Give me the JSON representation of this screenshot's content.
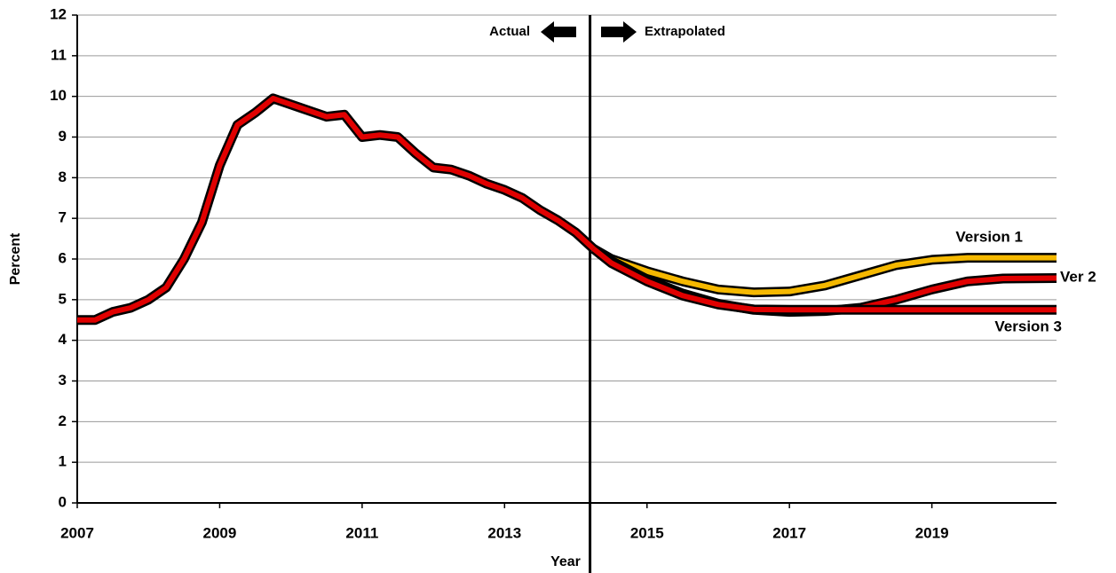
{
  "chart_data": {
    "type": "line",
    "x_label": "Year",
    "y_label": "Percent",
    "xlim": [
      2007,
      2020.75
    ],
    "xticks": [
      2007,
      2009,
      2011,
      2013,
      2015,
      2017,
      2019
    ],
    "ylim": [
      0,
      12
    ],
    "yticks": [
      0,
      1,
      2,
      3,
      4,
      5,
      6,
      7,
      8,
      9,
      10,
      11,
      12
    ],
    "grid": true,
    "divider": 2014.2,
    "divider_left_label": "Actual",
    "divider_right_label": "Extrapolated",
    "series": [
      {
        "color": "#e00000",
        "x": [
          2007,
          2007.25,
          2007.5,
          2007.75,
          2008,
          2008.25,
          2008.5,
          2008.75,
          2009,
          2009.25,
          2009.5,
          2009.75,
          2010,
          2010.25,
          2010.5,
          2010.75,
          2011,
          2011.25,
          2011.5,
          2011.75,
          2012,
          2012.25,
          2012.5,
          2012.75,
          2013,
          2013.25,
          2013.5,
          2013.75,
          2014,
          2014.25
        ],
        "values": [
          4.5,
          4.5,
          4.7,
          4.8,
          5.0,
          5.3,
          6.0,
          6.9,
          8.3,
          9.3,
          9.6,
          9.95,
          9.8,
          9.65,
          9.5,
          9.55,
          9.0,
          9.05,
          9.0,
          8.6,
          8.25,
          8.2,
          8.05,
          7.85,
          7.7,
          7.5,
          7.2,
          6.95,
          6.65,
          6.25
        ]
      },
      {
        "name": "Version 1",
        "color": "#f5b800",
        "x": [
          2014.25,
          2014.5,
          2015,
          2015.5,
          2016,
          2016.5,
          2017,
          2017.5,
          2018,
          2018.5,
          2019,
          2019.5,
          2020,
          2020.75
        ],
        "values": [
          6.25,
          6.0,
          5.7,
          5.45,
          5.25,
          5.18,
          5.2,
          5.35,
          5.6,
          5.85,
          5.98,
          6.03,
          6.03,
          6.03
        ]
      },
      {
        "name": "Ver 2",
        "color": "#e00000",
        "x": [
          2014.25,
          2014.5,
          2015,
          2015.5,
          2016,
          2016.5,
          2017,
          2017.5,
          2018,
          2018.5,
          2019,
          2019.5,
          2020,
          2020.75
        ],
        "values": [
          6.25,
          5.95,
          5.5,
          5.15,
          4.9,
          4.75,
          4.7,
          4.72,
          4.8,
          5.0,
          5.25,
          5.45,
          5.52,
          5.53
        ]
      },
      {
        "name": "Version 3",
        "color": "#e00000",
        "x": [
          2014.25,
          2014.5,
          2015,
          2015.5,
          2016,
          2016.5,
          2017,
          2017.5,
          2018,
          2018.5,
          2019,
          2019.5,
          2020,
          2020.75
        ],
        "values": [
          6.25,
          5.9,
          5.45,
          5.1,
          4.88,
          4.76,
          4.75,
          4.75,
          4.75,
          4.75,
          4.75,
          4.75,
          4.75,
          4.75
        ]
      }
    ]
  }
}
